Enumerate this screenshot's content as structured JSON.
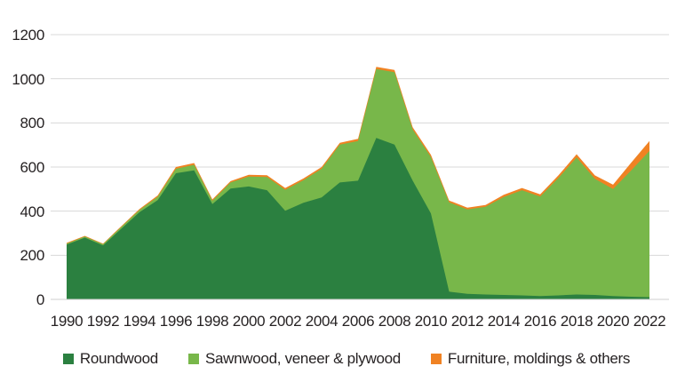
{
  "chart_data": {
    "type": "area",
    "stacked": true,
    "x": [
      1990,
      1991,
      1992,
      1993,
      1994,
      1995,
      1996,
      1997,
      1998,
      1999,
      2000,
      2001,
      2002,
      2003,
      2004,
      2005,
      2006,
      2007,
      2008,
      2009,
      2010,
      2011,
      2012,
      2013,
      2014,
      2015,
      2016,
      2017,
      2018,
      2019,
      2020,
      2021,
      2022
    ],
    "series": [
      {
        "name": "Roundwood",
        "color": "#2b8040",
        "values": [
          248,
          280,
          245,
          320,
          395,
          450,
          572,
          585,
          432,
          502,
          512,
          495,
          402,
          438,
          462,
          530,
          538,
          732,
          702,
          538,
          390,
          35,
          25,
          22,
          20,
          18,
          15,
          18,
          22,
          20,
          15,
          12,
          10
        ]
      },
      {
        "name": "Sawnwood, veneer & plywood",
        "color": "#78b74a",
        "values": [
          5,
          5,
          5,
          8,
          10,
          15,
          20,
          25,
          15,
          28,
          45,
          60,
          95,
          102,
          130,
          172,
          180,
          312,
          328,
          232,
          255,
          405,
          383,
          398,
          444,
          477,
          451,
          532,
          621,
          527,
          485,
          573,
          663
        ]
      },
      {
        "name": "Furniture, moldings & others",
        "color": "#f08223",
        "values": [
          3,
          3,
          3,
          4,
          5,
          6,
          8,
          8,
          6,
          6,
          8,
          8,
          8,
          8,
          8,
          8,
          10,
          10,
          10,
          10,
          10,
          8,
          8,
          8,
          10,
          10,
          10,
          12,
          15,
          15,
          20,
          35,
          45
        ]
      }
    ],
    "title": "",
    "xlabel": "",
    "ylabel": "",
    "ylim": [
      0,
      1200
    ],
    "yticks": [
      0,
      200,
      400,
      600,
      800,
      1000,
      1200
    ],
    "xticks": [
      1990,
      1992,
      1994,
      1996,
      1998,
      2000,
      2002,
      2004,
      2006,
      2008,
      2010,
      2012,
      2014,
      2016,
      2018,
      2020,
      2022
    ],
    "grid": true,
    "gridline_color": "#d8d8d8",
    "legend_position": "bottom"
  }
}
